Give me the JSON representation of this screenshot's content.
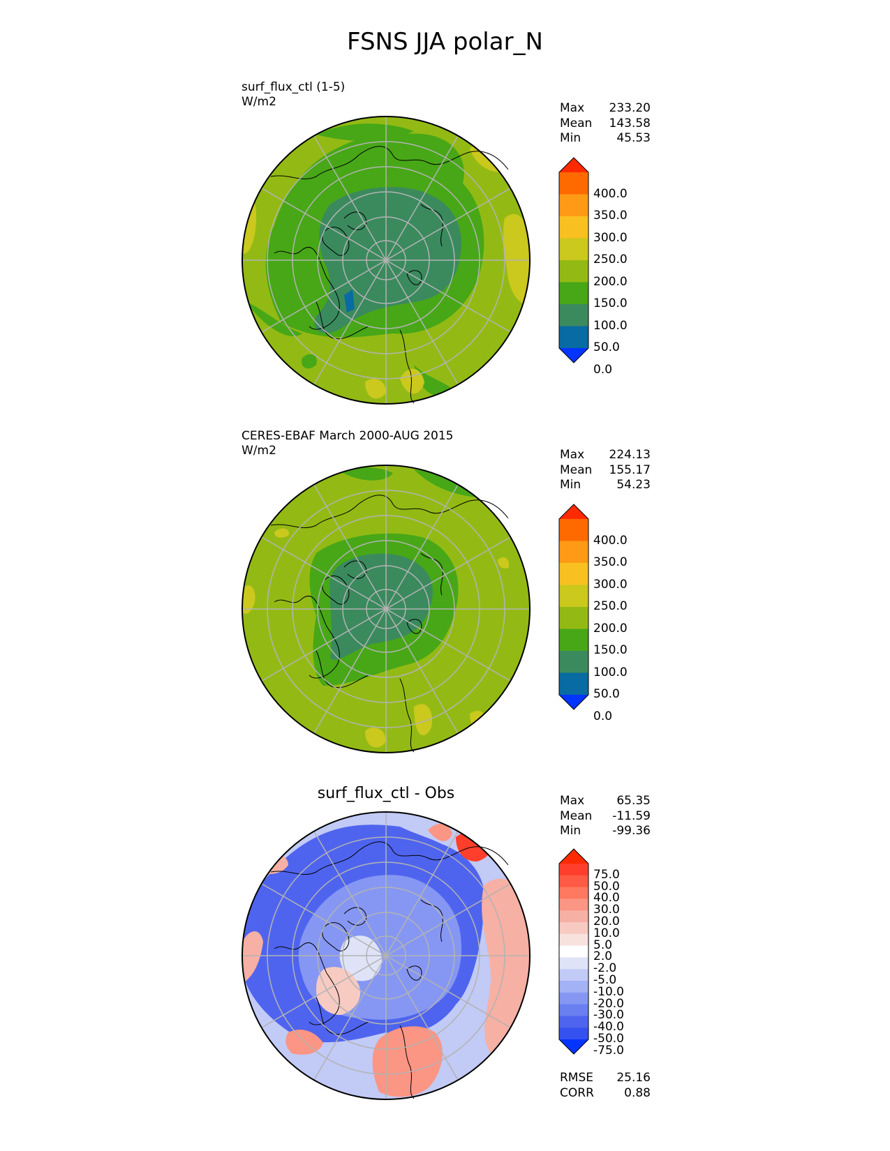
{
  "title": "FSNS JJA polar_N",
  "panels": [
    {
      "id": "test",
      "caption_line1": "surf_flux_ctl (1-5)",
      "caption_line2": "W/m2",
      "stats": {
        "max_label": "Max",
        "max": "233.20",
        "mean_label": "Mean",
        "mean": "143.58",
        "min_label": "Min",
        "min": "45.53"
      },
      "colorbar": {
        "labels": [
          "400.0",
          "350.0",
          "300.0",
          "250.0",
          "200.0",
          "150.0",
          "100.0",
          "50.0",
          "0.0"
        ],
        "colors": [
          "#ff2a00",
          "#ff6a00",
          "#ff9a16",
          "#f9c021",
          "#cbc81e",
          "#93ba14",
          "#47a717",
          "#3a8a5e",
          "#086ba1",
          "#0434ff"
        ]
      }
    },
    {
      "id": "ref",
      "caption_line1": "CERES-EBAF March 2000-AUG 2015",
      "caption_line2": "W/m2",
      "stats": {
        "max_label": "Max",
        "max": "224.13",
        "mean_label": "Mean",
        "mean": "155.17",
        "min_label": "Min",
        "min": "54.23"
      },
      "colorbar": {
        "labels": [
          "400.0",
          "350.0",
          "300.0",
          "250.0",
          "200.0",
          "150.0",
          "100.0",
          "50.0",
          "0.0"
        ],
        "colors": [
          "#ff2a00",
          "#ff6a00",
          "#ff9a16",
          "#f9c021",
          "#cbc81e",
          "#93ba14",
          "#47a717",
          "#3a8a5e",
          "#086ba1",
          "#0434ff"
        ]
      }
    },
    {
      "id": "diff",
      "caption_line1": "surf_flux_ctl - Obs",
      "stats": {
        "max_label": "Max",
        "max": "65.35",
        "mean_label": "Mean",
        "mean": "-11.59",
        "min_label": "Min",
        "min": "-99.36"
      },
      "metrics": {
        "rmse_label": "RMSE",
        "rmse": "25.16",
        "corr_label": "CORR",
        "corr": "0.88"
      },
      "colorbar": {
        "labels": [
          "75.0",
          "50.0",
          "40.0",
          "30.0",
          "20.0",
          "10.0",
          "5.0",
          "2.0",
          "-2.0",
          "-5.0",
          "-10.0",
          "-20.0",
          "-30.0",
          "-40.0",
          "-50.0",
          "-75.0"
        ],
        "colors": [
          "#ff2a00",
          "#ff3f2b",
          "#ff5a44",
          "#ff7860",
          "#fb9584",
          "#f7b0a4",
          "#f7cac2",
          "#f7e2de",
          "#ffffff",
          "#dfe3f7",
          "#c2caf6",
          "#a3b1f5",
          "#8697f3",
          "#6a7ff0",
          "#4f64ee",
          "#3551ef",
          "#0434ff"
        ]
      }
    }
  ]
}
